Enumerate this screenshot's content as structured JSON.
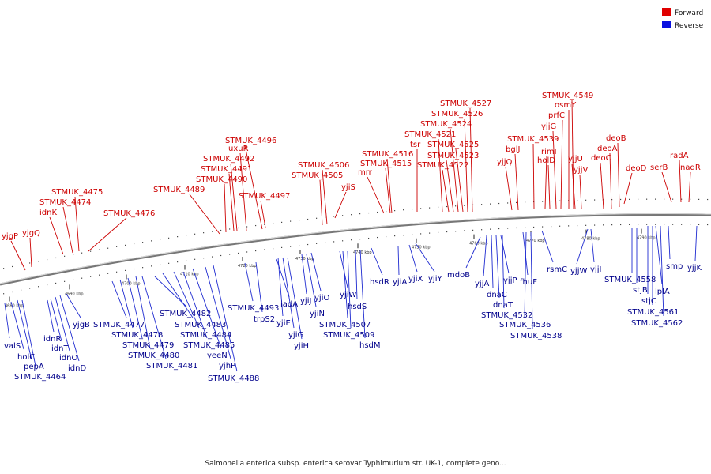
{
  "title": "Salmonella enterica subsp. enterica serovar Typhimurium str. UK-1, complete geno...",
  "legend": [
    {
      "label": "Forward",
      "color": "#e00000"
    },
    {
      "label": "Reverse",
      "color": "#0a10e0"
    }
  ],
  "colors": {
    "forward": "#e00000",
    "reverse": "#0a10e0",
    "backbone": "#777777"
  },
  "ticks": [
    {
      "label": "4680 kbp"
    },
    {
      "label": "4690 kbp"
    },
    {
      "label": "4700 kbp"
    },
    {
      "label": "4710 kbp"
    },
    {
      "label": "4720 kbp"
    },
    {
      "label": "4730 kbp"
    },
    {
      "label": "4740 kbp"
    },
    {
      "label": "4750 kbp"
    },
    {
      "label": "4760 kbp"
    },
    {
      "label": "4770 kbp"
    },
    {
      "label": "4780 kbp"
    },
    {
      "label": "4790 kbp"
    }
  ],
  "forward_labels": [
    "yjgP",
    "yjgQ",
    "idnK",
    "STMUK_4474",
    "STMUK_4475",
    "STMUK_4476",
    "STMUK_4489",
    "STMUK_4490",
    "STMUK_4491",
    "STMUK_4492",
    "uxuR",
    "STMUK_4496",
    "STMUK_4497",
    "STMUK_4505",
    "STMUK_4506",
    "yjiS",
    "mrr",
    "STMUK_4515",
    "STMUK_4516",
    "tsr",
    "STMUK_4521",
    "STMUK_4522",
    "STMUK_4523",
    "STMUK_4524",
    "STMUK_4525",
    "STMUK_4526",
    "STMUK_4527",
    "yjjQ",
    "bglJ",
    "STMUK_4539",
    "rimI",
    "holD",
    "yjjG",
    "prfC",
    "osmY",
    "STMUK_4549",
    "yjjU",
    "yjjV",
    "deoC",
    "deoA",
    "deoB",
    "deoD",
    "serB",
    "radA",
    "nadR"
  ],
  "reverse_labels": [
    "valS",
    "holC",
    "pepA",
    "STMUK_4464",
    "idnR",
    "idnT",
    "idnO",
    "idnD",
    "yjgB",
    "STMUK_4477",
    "STMUK_4478",
    "STMUK_4479",
    "STMUK_4480",
    "STMUK_4481",
    "STMUK_4482",
    "STMUK_4483",
    "STMUK_4484",
    "STMUK_4485",
    "yeeN",
    "yjhP",
    "STMUK_4488",
    "STMUK_4493",
    "trpS2",
    "iadA",
    "yjiE",
    "yjiG",
    "yjiH",
    "yjiJ",
    "yjiN",
    "yjiO",
    "yjiW",
    "STMUK_4507",
    "STMUK_4509",
    "hsdS",
    "hsdM",
    "hsdR",
    "yjiA",
    "yjiX",
    "yjiY",
    "mdoB",
    "yjjA",
    "dnaC",
    "dnaT",
    "yjjP",
    "STMUK_4532",
    "fhuF",
    "STMUK_4536",
    "STMUK_4538",
    "rsmC",
    "yjjW",
    "yjjI",
    "STMUK_4558",
    "stjB",
    "stjC",
    "STMUK_4561",
    "lplA",
    "STMUK_4562",
    "smp",
    "yjjK"
  ]
}
